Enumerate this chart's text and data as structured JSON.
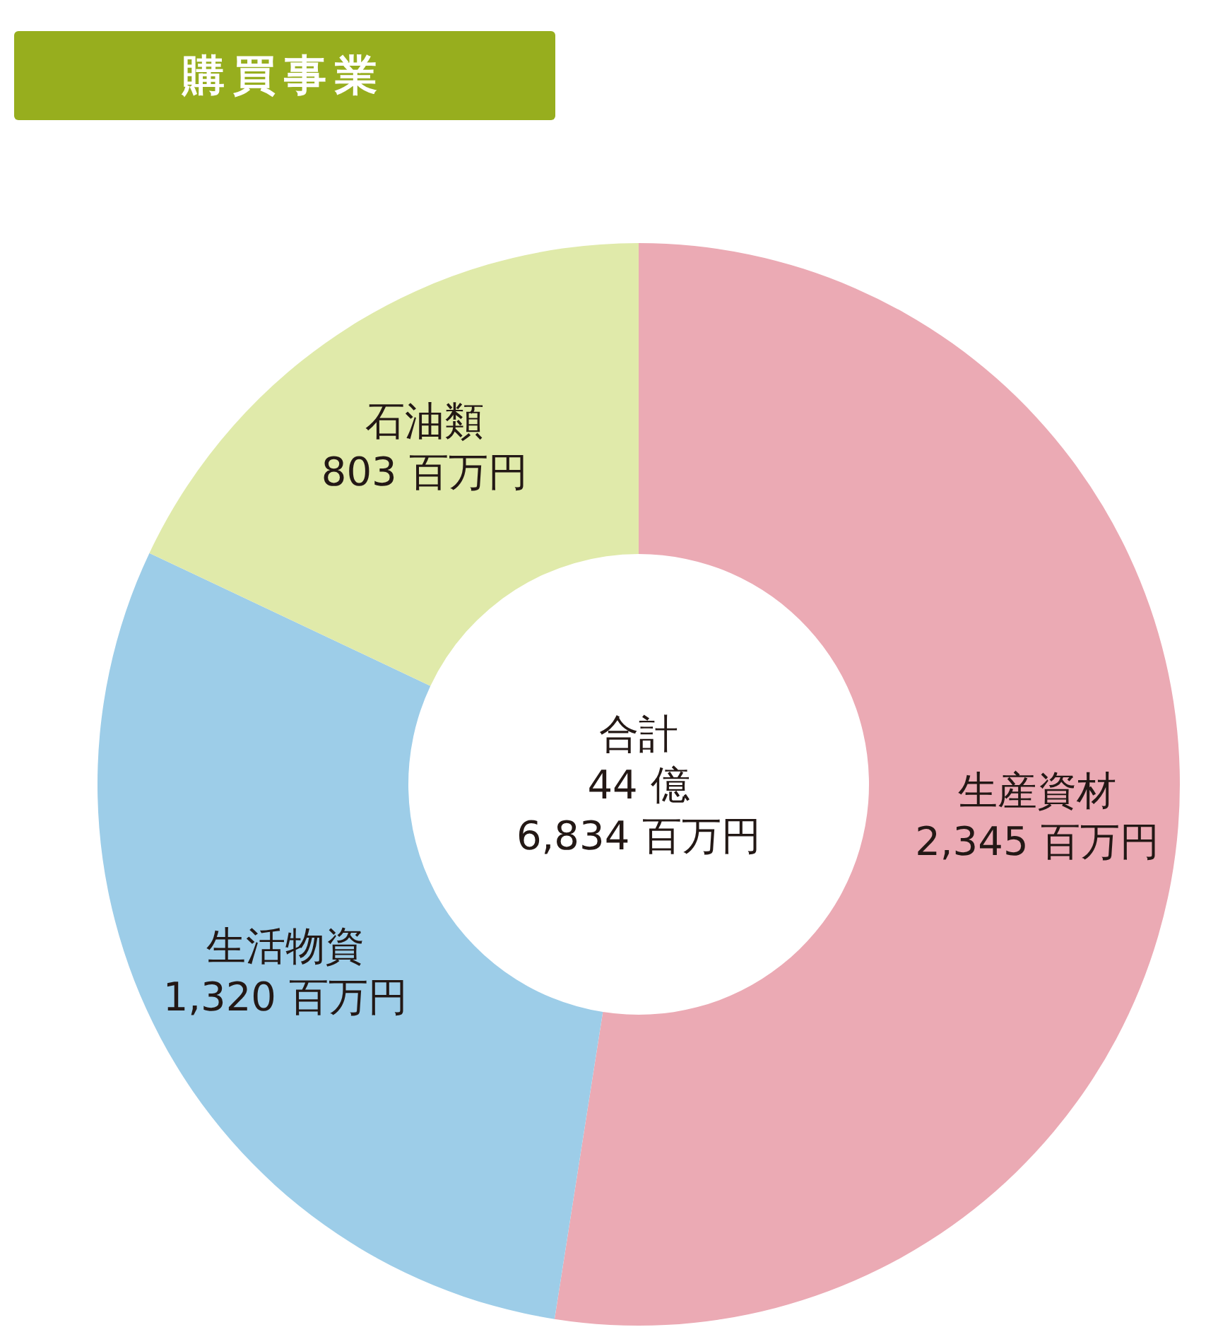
{
  "chart_data": {
    "type": "donut",
    "title": "購買事業",
    "categories": [
      "生産資材",
      "生活物資",
      "石油類"
    ],
    "values": [
      2345,
      1320,
      803
    ],
    "value_labels": [
      "2,345 百万円",
      "1,320 百万円",
      "803 百万円"
    ],
    "colors": [
      "#ebaab4",
      "#9dcde8",
      "#e0eaaa"
    ],
    "annotations": [
      "合計\n44 億\n6,834 百万円"
    ]
  }
}
